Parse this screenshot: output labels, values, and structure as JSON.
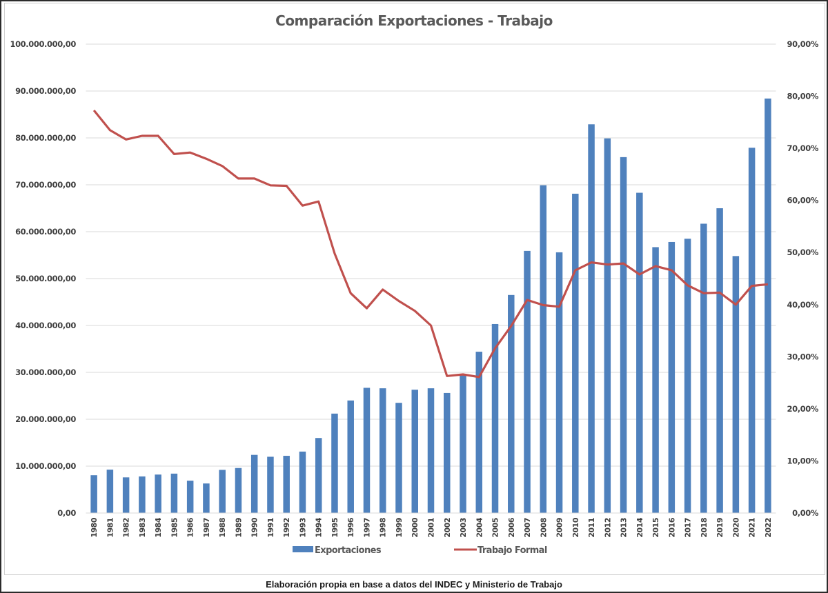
{
  "chart_data": {
    "type": "bar",
    "combo": "bar+line (dual axis)",
    "title": "Comparación Exportaciones - Trabajo",
    "categories": [
      "1980",
      "1981",
      "1982",
      "1983",
      "1984",
      "1985",
      "1986",
      "1987",
      "1988",
      "1989",
      "1990",
      "1991",
      "1992",
      "1993",
      "1994",
      "1995",
      "1996",
      "1997",
      "1998",
      "1999",
      "2000",
      "2001",
      "2002",
      "2003",
      "2004",
      "2005",
      "2006",
      "2007",
      "2008",
      "2009",
      "2010",
      "2011",
      "2012",
      "2013",
      "2014",
      "2015",
      "2016",
      "2017",
      "2018",
      "2019",
      "2020",
      "2021",
      "2022"
    ],
    "series": [
      {
        "name": "Exportaciones",
        "type": "bar",
        "axis": "left",
        "color": "#4F81BD",
        "values": [
          8060000,
          9250000,
          7600000,
          7800000,
          8200000,
          8400000,
          6900000,
          6300000,
          9200000,
          9600000,
          12400000,
          12000000,
          12200000,
          13100000,
          16000000,
          21200000,
          24000000,
          26700000,
          26600000,
          23500000,
          26300000,
          26600000,
          25600000,
          29700000,
          34400000,
          40300000,
          46500000,
          55900000,
          69900000,
          55600000,
          68100000,
          82900000,
          79900000,
          75900000,
          68300000,
          56700000,
          57800000,
          58500000,
          61700000,
          65000000,
          54800000,
          77900000,
          88400000
        ]
      },
      {
        "name": "Trabajo Formal",
        "type": "line",
        "axis": "right",
        "color": "#C0504D",
        "values": [
          77.3,
          73.5,
          71.7,
          72.4,
          72.4,
          68.9,
          69.2,
          68.0,
          66.6,
          64.2,
          64.2,
          62.9,
          62.8,
          59.0,
          59.8,
          49.8,
          42.2,
          39.3,
          42.9,
          40.7,
          38.8,
          36.0,
          26.3,
          26.6,
          26.1,
          31.6,
          35.9,
          40.9,
          39.9,
          39.6,
          46.6,
          48.1,
          47.7,
          47.9,
          45.8,
          47.4,
          46.6,
          43.7,
          42.2,
          42.3,
          40.0,
          43.6,
          43.9
        ]
      }
    ],
    "y_left": {
      "ylim": [
        0,
        100000000
      ],
      "ticks": [
        0,
        10000000,
        20000000,
        30000000,
        40000000,
        50000000,
        60000000,
        70000000,
        80000000,
        90000000,
        100000000
      ],
      "tick_labels": [
        "0,00",
        "10.000.000,00",
        "20.000.000,00",
        "30.000.000,00",
        "40.000.000,00",
        "50.000.000,00",
        "60.000.000,00",
        "70.000.000,00",
        "80.000.000,00",
        "90.000.000,00",
        "100.000.000,00"
      ]
    },
    "y_right": {
      "ylim": [
        0,
        90
      ],
      "ticks": [
        0,
        10,
        20,
        30,
        40,
        50,
        60,
        70,
        80,
        90
      ],
      "tick_labels": [
        "0,00%",
        "10,00%",
        "20,00%",
        "30,00%",
        "40,00%",
        "50,00%",
        "60,00%",
        "70,00%",
        "80,00%",
        "90,00%"
      ]
    },
    "xlabel": "",
    "ylabel": "",
    "grid": true,
    "legend": "bottom-center"
  },
  "legend": {
    "items": [
      "Exportaciones",
      "Trabajo Formal"
    ]
  },
  "footer": {
    "source_note": "Elaboración propia en base a datos del INDEC y Ministerio de Trabajo"
  }
}
